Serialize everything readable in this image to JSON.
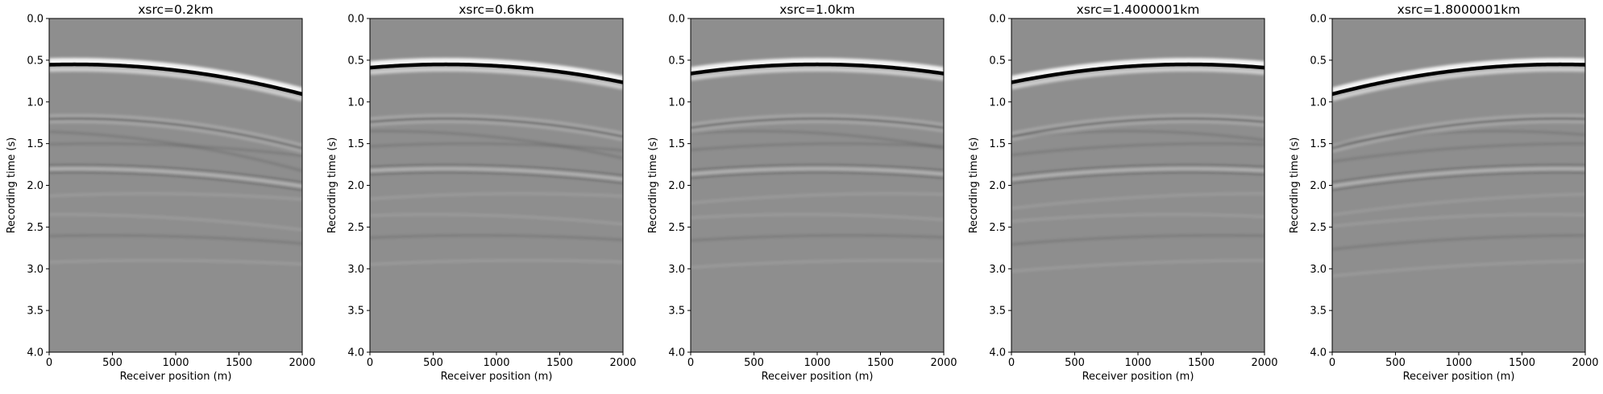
{
  "chart_data": [
    {
      "type": "heatmap",
      "title": "xsrc=0.2km",
      "xlabel": "Receiver position (m)",
      "ylabel": "Recording time (s)",
      "xlim": [
        0,
        2000
      ],
      "ylim": [
        4.0,
        0.0
      ],
      "xticks": [
        "0",
        "500",
        "1000",
        "1500",
        "2000"
      ],
      "yticks": [
        "0.0",
        "0.5",
        "1.0",
        "1.5",
        "2.0",
        "2.5",
        "3.0",
        "3.5",
        "4.0"
      ],
      "source_x_m": 200,
      "direct_arrival": {
        "apex_time_s": 0.55,
        "curvature_s_per_m2": 1.1e-07
      },
      "reflections": [
        {
          "apex_time_s": 1.2,
          "curvature_s_per_m2": 1.1e-07,
          "polarity": "dark"
        },
        {
          "apex_time_s": 1.8,
          "curvature_s_per_m2": 6.5e-08,
          "polarity": "light"
        }
      ],
      "colormap": "gray",
      "grid": false
    },
    {
      "type": "heatmap",
      "title": "xsrc=0.6km",
      "xlabel": "Receiver position (m)",
      "ylabel": "Recording time (s)",
      "xlim": [
        0,
        2000
      ],
      "ylim": [
        4.0,
        0.0
      ],
      "xticks": [
        "0",
        "500",
        "1000",
        "1500",
        "2000"
      ],
      "yticks": [
        "0.0",
        "0.5",
        "1.0",
        "1.5",
        "2.0",
        "2.5",
        "3.0",
        "3.5",
        "4.0"
      ],
      "source_x_m": 600,
      "direct_arrival": {
        "apex_time_s": 0.55,
        "curvature_s_per_m2": 1.1e-07
      },
      "reflections": [
        {
          "apex_time_s": 1.2,
          "curvature_s_per_m2": 1.1e-07,
          "polarity": "dark"
        },
        {
          "apex_time_s": 1.8,
          "curvature_s_per_m2": 6.5e-08,
          "polarity": "light"
        }
      ],
      "colormap": "gray",
      "grid": false
    },
    {
      "type": "heatmap",
      "title": "xsrc=1.0km",
      "xlabel": "Receiver position (m)",
      "ylabel": "Recording time (s)",
      "xlim": [
        0,
        2000
      ],
      "ylim": [
        4.0,
        0.0
      ],
      "xticks": [
        "0",
        "500",
        "1000",
        "1500",
        "2000"
      ],
      "yticks": [
        "0.0",
        "0.5",
        "1.0",
        "1.5",
        "2.0",
        "2.5",
        "3.0",
        "3.5",
        "4.0"
      ],
      "source_x_m": 1000,
      "direct_arrival": {
        "apex_time_s": 0.55,
        "curvature_s_per_m2": 1.1e-07
      },
      "reflections": [
        {
          "apex_time_s": 1.2,
          "curvature_s_per_m2": 1.1e-07,
          "polarity": "dark"
        },
        {
          "apex_time_s": 1.8,
          "curvature_s_per_m2": 6.5e-08,
          "polarity": "light"
        }
      ],
      "colormap": "gray",
      "grid": false
    },
    {
      "type": "heatmap",
      "title": "xsrc=1.4000001km",
      "xlabel": "Receiver position (m)",
      "ylabel": "Recording time (s)",
      "xlim": [
        0,
        2000
      ],
      "ylim": [
        4.0,
        0.0
      ],
      "xticks": [
        "0",
        "500",
        "1000",
        "1500",
        "2000"
      ],
      "yticks": [
        "0.0",
        "0.5",
        "1.0",
        "1.5",
        "2.0",
        "2.5",
        "3.0",
        "3.5",
        "4.0"
      ],
      "source_x_m": 1400,
      "direct_arrival": {
        "apex_time_s": 0.55,
        "curvature_s_per_m2": 1.1e-07
      },
      "reflections": [
        {
          "apex_time_s": 1.2,
          "curvature_s_per_m2": 1.1e-07,
          "polarity": "dark"
        },
        {
          "apex_time_s": 1.8,
          "curvature_s_per_m2": 6.5e-08,
          "polarity": "light"
        }
      ],
      "colormap": "gray",
      "grid": false
    },
    {
      "type": "heatmap",
      "title": "xsrc=1.8000001km",
      "xlabel": "Receiver position (m)",
      "ylabel": "Recording time (s)",
      "xlim": [
        0,
        2000
      ],
      "ylim": [
        4.0,
        0.0
      ],
      "xticks": [
        "0",
        "500",
        "1000",
        "1500",
        "2000"
      ],
      "yticks": [
        "0.0",
        "0.5",
        "1.0",
        "1.5",
        "2.0",
        "2.5",
        "3.0",
        "3.5",
        "4.0"
      ],
      "source_x_m": 1800,
      "direct_arrival": {
        "apex_time_s": 0.55,
        "curvature_s_per_m2": 1.1e-07
      },
      "reflections": [
        {
          "apex_time_s": 1.2,
          "curvature_s_per_m2": 1.1e-07,
          "polarity": "dark"
        },
        {
          "apex_time_s": 1.8,
          "curvature_s_per_m2": 6.5e-08,
          "polarity": "light"
        }
      ],
      "colormap": "gray",
      "grid": false
    }
  ],
  "colors": {
    "background": "#ffffff",
    "panel_gray": "#8e8e8e",
    "wave_dark": "#000000",
    "wave_light": "#ffffff"
  }
}
